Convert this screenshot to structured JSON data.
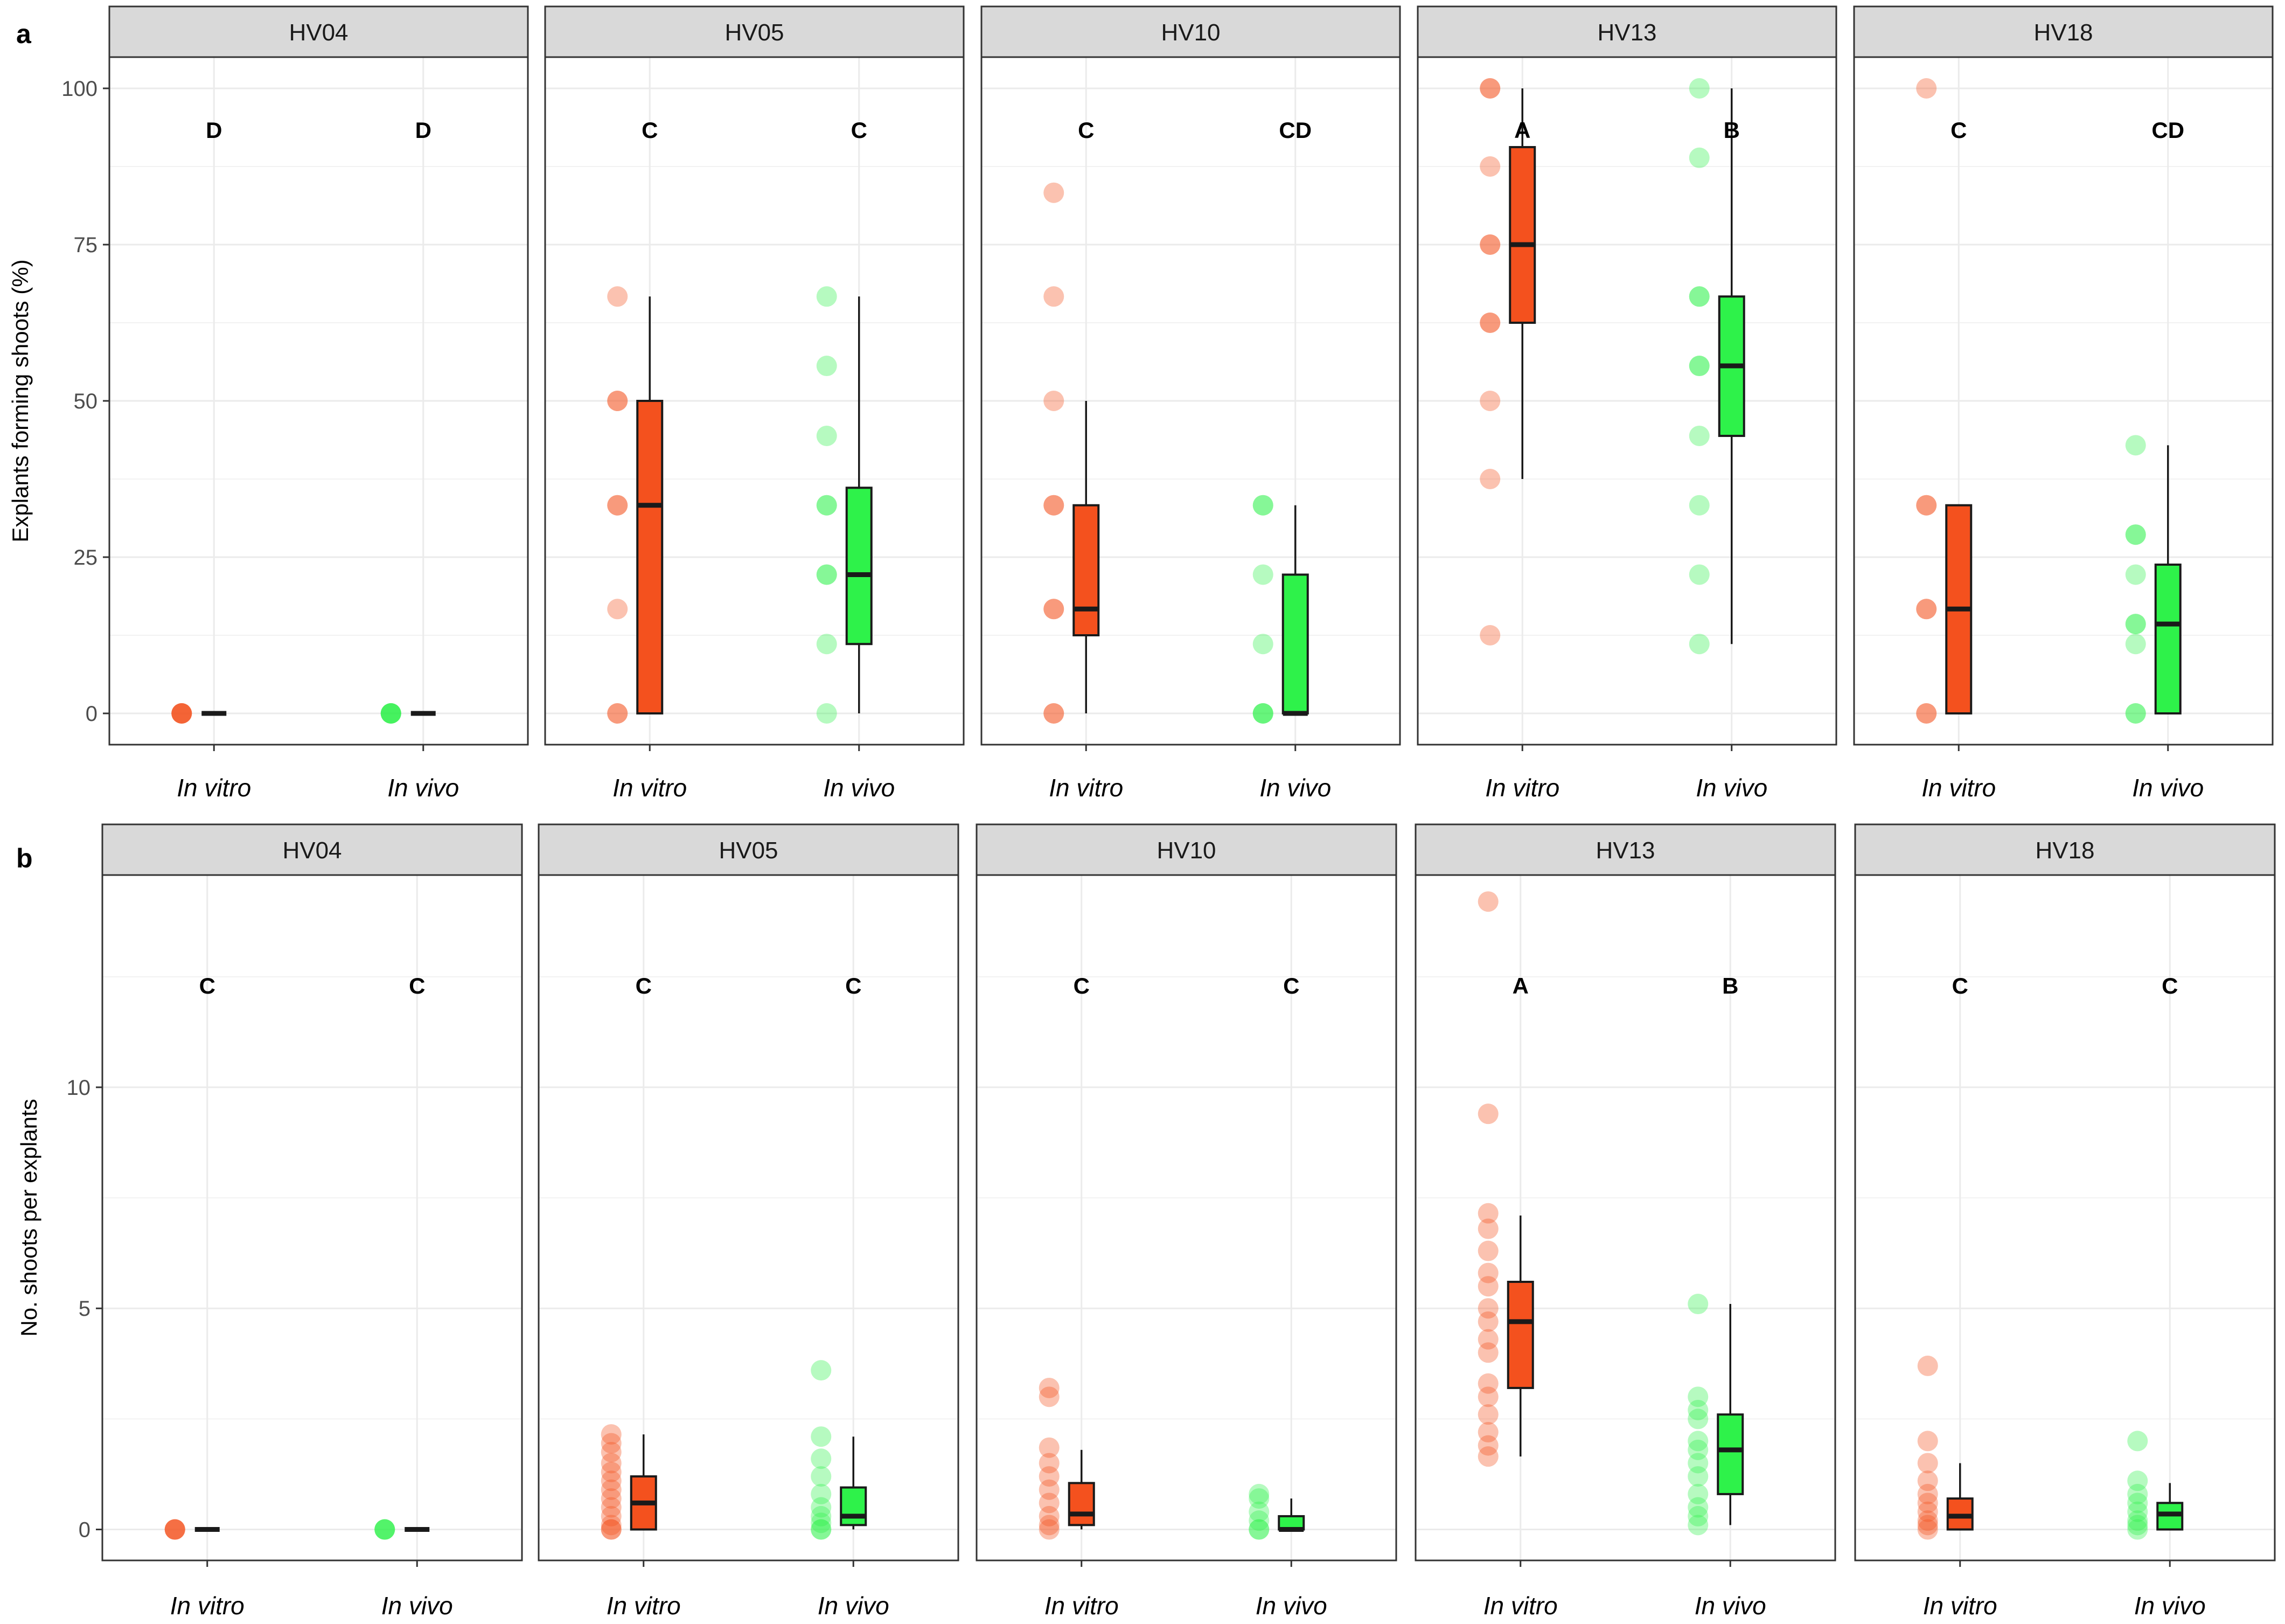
{
  "colors": {
    "in_vitro": "#F4511E",
    "in_vivo": "#2EF24A",
    "strip_bg": "#d9d9d9",
    "grid": "#ebebeb"
  },
  "chart_data": [
    {
      "tag": "a",
      "type": "boxplot",
      "ylabel": "Explants forming shoots (%)",
      "ylim": [
        -5,
        105
      ],
      "yticks": [
        0,
        25,
        50,
        75,
        100
      ],
      "tick_labels": [
        "0",
        "25",
        "50",
        "75",
        "100"
      ],
      "categories": [
        "In vitro",
        "In vivo"
      ],
      "facets": [
        {
          "name": "HV04",
          "groups": [
            {
              "category": "In vitro",
              "letter": "D",
              "min": 0,
              "q1": 0,
              "median": 0,
              "q3": 0,
              "max": 0,
              "points": [
                0,
                0,
                0,
                0,
                0
              ]
            },
            {
              "category": "In vivo",
              "letter": "D",
              "min": 0,
              "q1": 0,
              "median": 0,
              "q3": 0,
              "max": 0,
              "points": [
                0,
                0,
                0,
                0,
                0
              ]
            }
          ]
        },
        {
          "name": "HV05",
          "groups": [
            {
              "category": "In vitro",
              "letter": "C",
              "min": 0,
              "q1": 0,
              "median": 33.3,
              "q3": 50,
              "max": 66.7,
              "points": [
                66.7,
                50,
                50,
                33.3,
                33.3,
                16.7,
                0,
                0
              ]
            },
            {
              "category": "In vivo",
              "letter": "C",
              "min": 0,
              "q1": 11.1,
              "median": 22.2,
              "q3": 36.1,
              "max": 66.7,
              "points": [
                66.7,
                55.6,
                44.4,
                33.3,
                33.3,
                22.2,
                22.2,
                11.1,
                0
              ]
            }
          ]
        },
        {
          "name": "HV10",
          "groups": [
            {
              "category": "In vitro",
              "letter": "C",
              "min": 0,
              "q1": 12.5,
              "median": 16.7,
              "q3": 33.3,
              "max": 50,
              "points": [
                83.3,
                66.7,
                50,
                33.3,
                33.3,
                16.7,
                16.7,
                0,
                0
              ]
            },
            {
              "category": "In vivo",
              "letter": "CD",
              "min": 0,
              "q1": 0,
              "median": 0,
              "q3": 22.2,
              "max": 33.3,
              "points": [
                33.3,
                33.3,
                22.2,
                11.1,
                0,
                0,
                0
              ]
            }
          ]
        },
        {
          "name": "HV13",
          "groups": [
            {
              "category": "In vitro",
              "letter": "A",
              "min": 37.5,
              "q1": 62.5,
              "median": 75,
              "q3": 90.6,
              "max": 100,
              "points": [
                100,
                100,
                87.5,
                75,
                75,
                62.5,
                62.5,
                50,
                37.5,
                12.5
              ]
            },
            {
              "category": "In vivo",
              "letter": "B",
              "min": 11.1,
              "q1": 44.4,
              "median": 55.6,
              "q3": 66.7,
              "max": 100,
              "points": [
                100,
                88.9,
                66.7,
                66.7,
                55.6,
                55.6,
                44.4,
                33.3,
                22.2,
                11.1
              ]
            }
          ]
        },
        {
          "name": "HV18",
          "groups": [
            {
              "category": "In vitro",
              "letter": "C",
              "min": 0,
              "q1": 0,
              "median": 16.7,
              "q3": 33.3,
              "max": 33.3,
              "points": [
                100,
                33.3,
                33.3,
                16.7,
                16.7,
                0,
                0
              ]
            },
            {
              "category": "In vivo",
              "letter": "CD",
              "min": 0,
              "q1": 0,
              "median": 14.3,
              "q3": 23.8,
              "max": 42.9,
              "points": [
                42.9,
                28.6,
                28.6,
                22.2,
                14.3,
                14.3,
                11.1,
                0,
                0
              ]
            }
          ]
        }
      ]
    },
    {
      "tag": "b",
      "type": "boxplot",
      "ylabel": "No. shoots per explants",
      "ylim": [
        -0.7,
        14.8
      ],
      "yticks": [
        0,
        5,
        10
      ],
      "tick_labels": [
        "0",
        "5",
        "10"
      ],
      "categories": [
        "In vitro",
        "In vivo"
      ],
      "facets": [
        {
          "name": "HV04",
          "groups": [
            {
              "category": "In vitro",
              "letter": "C",
              "min": 0,
              "q1": 0,
              "median": 0,
              "q3": 0,
              "max": 0,
              "points": [
                0,
                0,
                0,
                0
              ]
            },
            {
              "category": "In vivo",
              "letter": "C",
              "min": 0,
              "q1": 0,
              "median": 0,
              "q3": 0,
              "max": 0,
              "points": [
                0,
                0,
                0,
                0
              ]
            }
          ]
        },
        {
          "name": "HV05",
          "groups": [
            {
              "category": "In vitro",
              "letter": "C",
              "min": 0,
              "q1": 0,
              "median": 0.6,
              "q3": 1.2,
              "max": 2.15,
              "points": [
                2.15,
                1.95,
                1.75,
                1.5,
                1.3,
                1.1,
                0.9,
                0.7,
                0.5,
                0.3,
                0.1,
                0,
                0
              ]
            },
            {
              "category": "In vivo",
              "letter": "C",
              "min": 0,
              "q1": 0.1,
              "median": 0.3,
              "q3": 0.95,
              "max": 2.1,
              "points": [
                3.6,
                2.1,
                1.6,
                1.2,
                0.8,
                0.5,
                0.3,
                0.15,
                0,
                0
              ]
            }
          ]
        },
        {
          "name": "HV10",
          "groups": [
            {
              "category": "In vitro",
              "letter": "C",
              "min": 0,
              "q1": 0.1,
              "median": 0.35,
              "q3": 1.05,
              "max": 1.8,
              "points": [
                3.2,
                3.0,
                1.85,
                1.5,
                1.2,
                0.9,
                0.6,
                0.3,
                0.1,
                0
              ]
            },
            {
              "category": "In vivo",
              "letter": "C",
              "min": 0,
              "q1": 0,
              "median": 0,
              "q3": 0.3,
              "max": 0.7,
              "points": [
                0.8,
                0.7,
                0.4,
                0.2,
                0,
                0
              ]
            }
          ]
        },
        {
          "name": "HV13",
          "groups": [
            {
              "category": "In vitro",
              "letter": "A",
              "min": 1.65,
              "q1": 3.2,
              "median": 4.7,
              "q3": 5.6,
              "max": 7.1,
              "points": [
                14.2,
                9.4,
                7.15,
                6.8,
                6.3,
                5.8,
                5.5,
                5.0,
                4.7,
                4.3,
                4.0,
                3.3,
                3.0,
                2.6,
                2.2,
                1.9,
                1.65
              ]
            },
            {
              "category": "In vivo",
              "letter": "B",
              "min": 0.1,
              "q1": 0.8,
              "median": 1.8,
              "q3": 2.6,
              "max": 5.1,
              "points": [
                5.1,
                3.0,
                2.7,
                2.5,
                2.0,
                1.8,
                1.5,
                1.2,
                0.8,
                0.5,
                0.3,
                0.1
              ]
            }
          ]
        },
        {
          "name": "HV18",
          "groups": [
            {
              "category": "In vitro",
              "letter": "C",
              "min": 0,
              "q1": 0,
              "median": 0.3,
              "q3": 0.7,
              "max": 1.5,
              "points": [
                3.7,
                2.0,
                1.5,
                1.1,
                0.8,
                0.6,
                0.4,
                0.2,
                0.1,
                0
              ]
            },
            {
              "category": "In vivo",
              "letter": "C",
              "min": 0,
              "q1": 0,
              "median": 0.35,
              "q3": 0.6,
              "max": 1.05,
              "points": [
                2.0,
                1.1,
                0.8,
                0.6,
                0.4,
                0.2,
                0.1,
                0
              ]
            }
          ]
        }
      ]
    }
  ]
}
